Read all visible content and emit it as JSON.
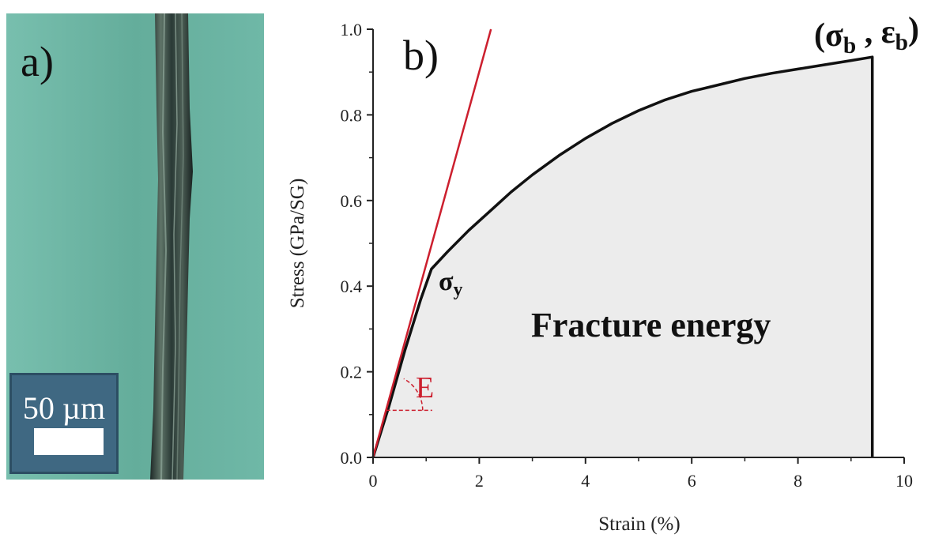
{
  "panel_a": {
    "label": "a)",
    "scale_bar_label": "50 µm",
    "background_color": "#6fb8a7",
    "fiber_color": "#2e3e3a"
  },
  "chart_data": {
    "type": "line",
    "panel_label": "b)",
    "title": "",
    "xlabel": "Strain (%)",
    "ylabel": "Stress (GPa/SG)",
    "xlim": [
      0,
      10
    ],
    "ylim": [
      0,
      1.0
    ],
    "xticks": [
      0,
      2,
      4,
      6,
      8,
      10
    ],
    "xtick_labels": [
      "0",
      "2",
      "4",
      "6",
      "8",
      "10"
    ],
    "yticks": [
      0.0,
      0.2,
      0.4,
      0.6,
      0.8,
      1.0
    ],
    "ytick_labels": [
      "0.0",
      "0.2",
      "0.4",
      "0.6",
      "0.8",
      "1.0"
    ],
    "grid": false,
    "series": [
      {
        "color": "#111111",
        "fill": "#ececec",
        "x": [
          0,
          0.3,
          0.6,
          0.9,
          1.1,
          1.4,
          1.8,
          2.2,
          2.6,
          3.0,
          3.5,
          4.0,
          4.5,
          5.0,
          5.5,
          6.0,
          6.5,
          7.0,
          7.5,
          8.0,
          8.5,
          9.0,
          9.4,
          9.4
        ],
        "y": [
          0,
          0.12,
          0.25,
          0.37,
          0.44,
          0.48,
          0.53,
          0.575,
          0.62,
          0.66,
          0.705,
          0.745,
          0.78,
          0.81,
          0.835,
          0.855,
          0.87,
          0.885,
          0.897,
          0.907,
          0.917,
          0.927,
          0.935,
          0.0
        ]
      },
      {
        "color": "#cc1f2e",
        "x": [
          0,
          2.22
        ],
        "y": [
          0,
          1.0
        ]
      }
    ],
    "annotations": {
      "break_point": "(σb , εb)",
      "yield_point": "σy",
      "area_label": "Fracture energy",
      "modulus_label": "E"
    }
  }
}
